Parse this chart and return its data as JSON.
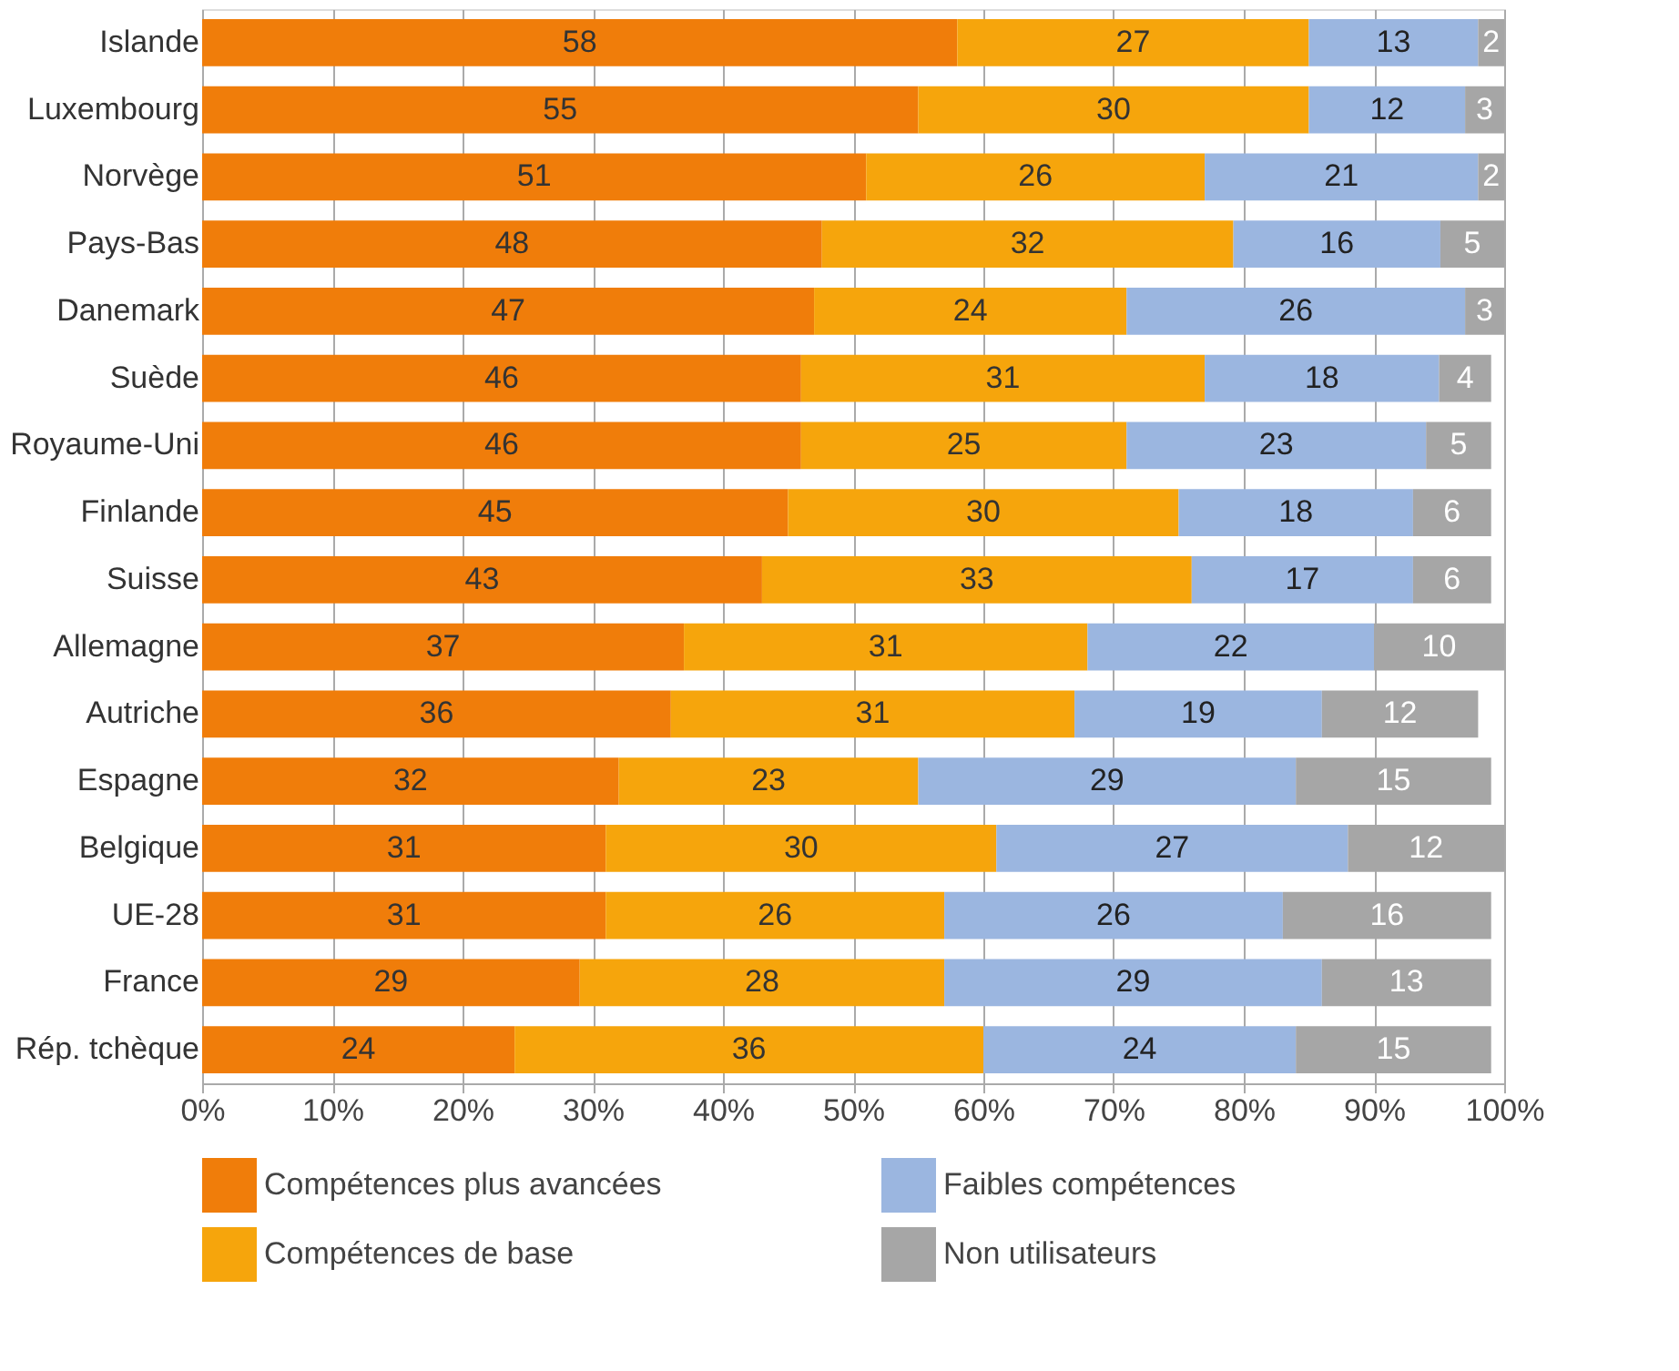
{
  "chart_data": {
    "type": "bar",
    "orientation": "horizontal",
    "stacked": true,
    "data_labels": true,
    "grid": "x",
    "legend": "bottom",
    "categories": [
      "Islande",
      "Luxembourg",
      "Norvège",
      "Pays-Bas",
      "Danemark",
      "Suède",
      "Royaume-Uni",
      "Finlande",
      "Suisse",
      "Allemagne",
      "Autriche",
      "Espagne",
      "Belgique",
      "UE-28",
      "France",
      "Rép. tchèque"
    ],
    "xlim": [
      0,
      100
    ],
    "xticks": [
      {
        "value": 0,
        "label": "0%"
      },
      {
        "value": 10,
        "label": "10%"
      },
      {
        "value": 20,
        "label": "20%"
      },
      {
        "value": 30,
        "label": "30%"
      },
      {
        "value": 40,
        "label": "40%"
      },
      {
        "value": 50,
        "label": "50%"
      },
      {
        "value": 60,
        "label": "60%"
      },
      {
        "value": 70,
        "label": "70%"
      },
      {
        "value": 80,
        "label": "80%"
      },
      {
        "value": 90,
        "label": "90%"
      },
      {
        "value": 100,
        "label": "100%"
      }
    ],
    "series": [
      {
        "name": "Compétences plus avancées",
        "color": "#f07d0a",
        "values": [
          58,
          55,
          51,
          47.6,
          47,
          46,
          46,
          45,
          43,
          37,
          36,
          32,
          31,
          31,
          29,
          24
        ],
        "value_labels": [
          "58",
          "55",
          "51",
          "48",
          "47",
          "46",
          "46",
          "45",
          "43",
          "37",
          "36",
          "32",
          "31",
          "31",
          "29",
          "24"
        ]
      },
      {
        "name": "Compétences de base",
        "color": "#f6a50c",
        "values": [
          27,
          30,
          26,
          31.6,
          24,
          31,
          25,
          30,
          33,
          31,
          31,
          23,
          30,
          26,
          28,
          36
        ],
        "value_labels": [
          "27",
          "30",
          "26",
          "32",
          "24",
          "31",
          "25",
          "30",
          "33",
          "31",
          "31",
          "23",
          "30",
          "26",
          "28",
          "36"
        ]
      },
      {
        "name": "Faibles compétences",
        "color": "#9bb6e0",
        "values": [
          13,
          12,
          21,
          15.9,
          26,
          18,
          23,
          18,
          17,
          22,
          19,
          29,
          27,
          26,
          29,
          24
        ],
        "value_labels": [
          "13",
          "12",
          "21",
          "16",
          "26",
          "18",
          "23",
          "18",
          "17",
          "22",
          "19",
          "29",
          "27",
          "26",
          "29",
          "24"
        ]
      },
      {
        "name": "Non utilisateurs",
        "color": "#a6a6a6",
        "values": [
          2,
          3,
          2,
          4.9,
          3,
          4,
          5,
          6,
          6,
          10,
          12,
          15,
          12,
          16,
          13,
          15
        ],
        "value_labels": [
          "2",
          "3",
          "2",
          "5",
          "3",
          "4",
          "5",
          "6",
          "6",
          "10",
          "12",
          "15",
          "12",
          "16",
          "13",
          "15"
        ]
      }
    ]
  }
}
